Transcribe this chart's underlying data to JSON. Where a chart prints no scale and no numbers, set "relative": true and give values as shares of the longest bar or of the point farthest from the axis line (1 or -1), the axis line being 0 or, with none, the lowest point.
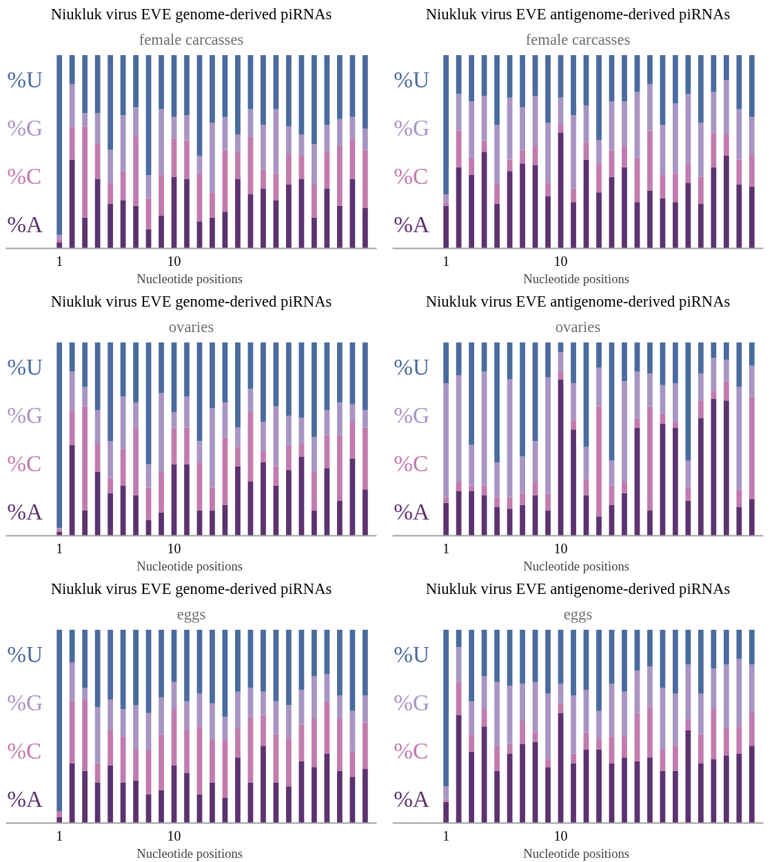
{
  "chart_data": [
    {
      "type": "bar",
      "stacked": true,
      "relative": true,
      "title": "Niukluk virus EVE genome-derived piRNAs",
      "subtitle": "female carcasses",
      "xlabel": "Nucleotide  positions",
      "categories": [
        "1",
        null,
        null,
        null,
        null,
        null,
        null,
        null,
        null,
        "10",
        null,
        null,
        null,
        null,
        null,
        null,
        null,
        null,
        null,
        null,
        null,
        null,
        null,
        null,
        null
      ],
      "series": [
        {
          "name": "%A",
          "color": "#5c3270",
          "values": [
            0.03,
            0.46,
            0.16,
            0.36,
            0.23,
            0.25,
            0.22,
            0.1,
            0.17,
            0.37,
            0.36,
            0.14,
            0.16,
            0.19,
            0.36,
            0.28,
            0.31,
            0.25,
            0.33,
            0.36,
            0.16,
            0.31,
            0.22,
            0.36,
            0.21
          ]
        },
        {
          "name": "%C",
          "color": "#c27bae",
          "values": [
            0.02,
            0.17,
            0.47,
            0.18,
            0.11,
            0.15,
            0.36,
            0.16,
            0.21,
            0.2,
            0.2,
            0.25,
            0.13,
            0.32,
            0.14,
            0.3,
            0.1,
            0.14,
            0.16,
            0.12,
            0.17,
            0.19,
            0.31,
            0.21,
            0.3
          ]
        },
        {
          "name": "%G",
          "color": "#a895c4",
          "values": [
            0.02,
            0.22,
            0.07,
            0.16,
            0.17,
            0.29,
            0.15,
            0.12,
            0.34,
            0.11,
            0.13,
            0.09,
            0.36,
            0.17,
            0.09,
            0.14,
            0.23,
            0.33,
            0.14,
            0.11,
            0.21,
            0.14,
            0.14,
            0.11,
            0.11
          ]
        },
        {
          "name": "%U",
          "color": "#4a6b9e",
          "values": [
            0.93,
            0.15,
            0.3,
            0.3,
            0.49,
            0.31,
            0.27,
            0.62,
            0.28,
            0.32,
            0.31,
            0.52,
            0.35,
            0.32,
            0.41,
            0.28,
            0.36,
            0.28,
            0.37,
            0.41,
            0.46,
            0.36,
            0.33,
            0.32,
            0.38
          ]
        }
      ]
    },
    {
      "type": "bar",
      "stacked": true,
      "relative": true,
      "title": "Niukluk virus EVE antigenome-derived piRNAs",
      "subtitle": "female carcasses",
      "xlabel": "Nucleotide  positions",
      "categories": [
        "1",
        null,
        null,
        null,
        null,
        null,
        null,
        null,
        null,
        "10",
        null,
        null,
        null,
        null,
        null,
        null,
        null,
        null,
        null,
        null,
        null,
        null,
        null,
        null,
        null
      ],
      "series": [
        {
          "name": "%A",
          "color": "#5c3270",
          "values": [
            0.22,
            0.42,
            0.38,
            0.5,
            0.23,
            0.4,
            0.44,
            0.43,
            0.27,
            0.6,
            0.24,
            0.46,
            0.29,
            0.37,
            0.42,
            0.24,
            0.3,
            0.26,
            0.24,
            0.34,
            0.23,
            0.42,
            0.48,
            0.33,
            0.32
          ]
        },
        {
          "name": "%C",
          "color": "#c27bae",
          "values": [
            0.02,
            0.19,
            0.09,
            0.06,
            0.1,
            0.06,
            0.07,
            0.1,
            0.07,
            0.04,
            0.07,
            0.09,
            0.15,
            0.14,
            0.11,
            0.23,
            0.31,
            0.12,
            0.15,
            0.1,
            0.14,
            0.18,
            0.11,
            0.13,
            0.17
          ]
        },
        {
          "name": "%G",
          "color": "#a895c4",
          "values": [
            0.04,
            0.19,
            0.29,
            0.23,
            0.31,
            0.32,
            0.22,
            0.26,
            0.31,
            0.14,
            0.38,
            0.19,
            0.12,
            0.25,
            0.23,
            0.34,
            0.24,
            0.26,
            0.36,
            0.36,
            0.28,
            0.21,
            0.28,
            0.26,
            0.19
          ]
        },
        {
          "name": "%U",
          "color": "#4a6b9e",
          "values": [
            0.72,
            0.2,
            0.24,
            0.21,
            0.36,
            0.22,
            0.27,
            0.21,
            0.35,
            0.22,
            0.31,
            0.26,
            0.44,
            0.24,
            0.24,
            0.19,
            0.15,
            0.36,
            0.25,
            0.2,
            0.35,
            0.19,
            0.13,
            0.28,
            0.32
          ]
        }
      ]
    },
    {
      "type": "bar",
      "stacked": true,
      "relative": true,
      "title": "Niukluk virus EVE genome-derived piRNAs",
      "subtitle": "ovaries",
      "xlabel": "Nucleotide  positions",
      "categories": [
        "1",
        null,
        null,
        null,
        null,
        null,
        null,
        null,
        null,
        "10",
        null,
        null,
        null,
        null,
        null,
        null,
        null,
        null,
        null,
        null,
        null,
        null,
        null,
        null,
        null
      ],
      "series": [
        {
          "name": "%A",
          "color": "#5c3270",
          "values": [
            0.02,
            0.47,
            0.13,
            0.33,
            0.22,
            0.26,
            0.21,
            0.08,
            0.12,
            0.37,
            0.37,
            0.13,
            0.13,
            0.16,
            0.36,
            0.28,
            0.38,
            0.26,
            0.34,
            0.41,
            0.13,
            0.35,
            0.18,
            0.4,
            0.24
          ]
        },
        {
          "name": "%C",
          "color": "#c27bae",
          "values": [
            0.01,
            0.18,
            0.54,
            0.15,
            0.08,
            0.19,
            0.35,
            0.17,
            0.21,
            0.19,
            0.19,
            0.25,
            0.12,
            0.35,
            0.1,
            0.36,
            0.06,
            0.1,
            0.13,
            0.07,
            0.2,
            0.17,
            0.34,
            0.19,
            0.32
          ]
        },
        {
          "name": "%G",
          "color": "#a895c4",
          "values": [
            0.01,
            0.2,
            0.1,
            0.17,
            0.19,
            0.27,
            0.13,
            0.12,
            0.41,
            0.08,
            0.16,
            0.11,
            0.41,
            0.18,
            0.1,
            0.12,
            0.15,
            0.31,
            0.15,
            0.13,
            0.18,
            0.13,
            0.17,
            0.09,
            0.09
          ]
        },
        {
          "name": "%U",
          "color": "#4a6b9e",
          "values": [
            0.96,
            0.15,
            0.23,
            0.35,
            0.51,
            0.28,
            0.31,
            0.63,
            0.26,
            0.36,
            0.28,
            0.51,
            0.34,
            0.31,
            0.44,
            0.24,
            0.41,
            0.33,
            0.38,
            0.39,
            0.49,
            0.35,
            0.31,
            0.32,
            0.35
          ]
        }
      ]
    },
    {
      "type": "bar",
      "stacked": true,
      "relative": true,
      "title": "Niukluk virus EVE antigenome-derived piRNAs",
      "subtitle": "ovaries",
      "xlabel": "Nucleotide  positions",
      "categories": [
        "1",
        null,
        null,
        null,
        null,
        null,
        null,
        null,
        null,
        "10",
        null,
        null,
        null,
        null,
        null,
        null,
        null,
        null,
        null,
        null,
        null,
        null,
        null,
        null,
        null
      ],
      "series": [
        {
          "name": "%A",
          "color": "#5c3270",
          "values": [
            0.17,
            0.23,
            0.23,
            0.21,
            0.15,
            0.14,
            0.16,
            0.21,
            0.13,
            0.81,
            0.55,
            0.21,
            0.1,
            0.16,
            0.22,
            0.56,
            0.13,
            0.58,
            0.56,
            0.18,
            0.61,
            0.71,
            0.7,
            0.15,
            0.19
          ]
        },
        {
          "name": "%C",
          "color": "#c27bae",
          "values": [
            0.03,
            0.05,
            0.03,
            0.05,
            0.05,
            0.06,
            0.06,
            0.07,
            0.09,
            0.04,
            0.05,
            0.08,
            0.57,
            0.1,
            0.06,
            0.05,
            0.54,
            0.05,
            0.03,
            0.07,
            0.09,
            0.04,
            0.1,
            0.09,
            0.53
          ]
        },
        {
          "name": "%G",
          "color": "#a895c4",
          "values": [
            0.59,
            0.55,
            0.21,
            0.59,
            0.18,
            0.61,
            0.19,
            0.21,
            0.6,
            0.1,
            0.19,
            0.17,
            0.2,
            0.13,
            0.52,
            0.24,
            0.17,
            0.15,
            0.2,
            0.14,
            0.14,
            0.17,
            0.11,
            0.53,
            0.16
          ]
        },
        {
          "name": "%U",
          "color": "#4a6b9e",
          "values": [
            0.21,
            0.17,
            0.53,
            0.15,
            0.62,
            0.19,
            0.59,
            0.51,
            0.18,
            0.05,
            0.21,
            0.54,
            0.13,
            0.61,
            0.2,
            0.15,
            0.16,
            0.22,
            0.21,
            0.61,
            0.16,
            0.08,
            0.09,
            0.23,
            0.12
          ]
        }
      ]
    },
    {
      "type": "bar",
      "stacked": true,
      "relative": true,
      "title": "Niukluk virus EVE genome-derived piRNAs",
      "subtitle": "eggs",
      "xlabel": "Nucleotide  positions",
      "categories": [
        "1",
        null,
        null,
        null,
        null,
        null,
        null,
        null,
        null,
        "10",
        null,
        null,
        null,
        null,
        null,
        null,
        null,
        null,
        null,
        null,
        null,
        null,
        null,
        null,
        null
      ],
      "series": [
        {
          "name": "%A",
          "color": "#5c3270",
          "values": [
            0.03,
            0.31,
            0.27,
            0.21,
            0.3,
            0.21,
            0.22,
            0.15,
            0.17,
            0.3,
            0.26,
            0.15,
            0.21,
            0.13,
            0.34,
            0.21,
            0.4,
            0.21,
            0.19,
            0.32,
            0.29,
            0.36,
            0.27,
            0.24,
            0.28
          ]
        },
        {
          "name": "%C",
          "color": "#c27bae",
          "values": [
            0.03,
            0.32,
            0.37,
            0.1,
            0.18,
            0.24,
            0.16,
            0.23,
            0.29,
            0.29,
            0.22,
            0.35,
            0.22,
            0.3,
            0.15,
            0.34,
            0.16,
            0.25,
            0.25,
            0.19,
            0.25,
            0.27,
            0.27,
            0.13,
            0.24
          ]
        },
        {
          "name": "%G",
          "color": "#a895c4",
          "values": [
            0.0,
            0.2,
            0.06,
            0.29,
            0.16,
            0.14,
            0.23,
            0.19,
            0.19,
            0.14,
            0.15,
            0.17,
            0.19,
            0.12,
            0.19,
            0.15,
            0.12,
            0.17,
            0.17,
            0.18,
            0.22,
            0.14,
            0.12,
            0.21,
            0.14
          ]
        },
        {
          "name": "%U",
          "color": "#4a6b9e",
          "values": [
            0.94,
            0.17,
            0.3,
            0.4,
            0.36,
            0.41,
            0.39,
            0.43,
            0.35,
            0.27,
            0.37,
            0.33,
            0.38,
            0.45,
            0.32,
            0.3,
            0.32,
            0.37,
            0.39,
            0.31,
            0.24,
            0.23,
            0.34,
            0.42,
            0.34
          ]
        }
      ]
    },
    {
      "type": "bar",
      "stacked": true,
      "relative": true,
      "title": "Niukluk virus EVE antigenome-derived piRNAs",
      "subtitle": "eggs",
      "xlabel": "Nucleotide  positions",
      "categories": [
        "1",
        null,
        null,
        null,
        null,
        null,
        null,
        null,
        null,
        "10",
        null,
        null,
        null,
        null,
        null,
        null,
        null,
        null,
        null,
        null,
        null,
        null,
        null,
        null,
        null
      ],
      "series": [
        {
          "name": "%A",
          "color": "#5c3270",
          "values": [
            0.11,
            0.56,
            0.37,
            0.5,
            0.27,
            0.36,
            0.41,
            0.42,
            0.29,
            0.57,
            0.31,
            0.38,
            0.38,
            0.31,
            0.34,
            0.32,
            0.34,
            0.27,
            0.27,
            0.48,
            0.31,
            0.33,
            0.35,
            0.36,
            0.4
          ]
        },
        {
          "name": "%C",
          "color": "#c27bae",
          "values": [
            0.01,
            0.17,
            0.09,
            0.09,
            0.13,
            0.05,
            0.12,
            0.05,
            0.04,
            0.05,
            0.05,
            0.09,
            0.06,
            0.14,
            0.11,
            0.25,
            0.26,
            0.11,
            0.13,
            0.06,
            0.15,
            0.26,
            0.14,
            0.14,
            0.18
          ]
        },
        {
          "name": "%G",
          "color": "#a895c4",
          "values": [
            0.07,
            0.18,
            0.17,
            0.17,
            0.33,
            0.3,
            0.19,
            0.26,
            0.34,
            0.1,
            0.3,
            0.22,
            0.14,
            0.27,
            0.23,
            0.22,
            0.21,
            0.32,
            0.27,
            0.28,
            0.21,
            0.21,
            0.33,
            0.35,
            0.24
          ]
        },
        {
          "name": "%U",
          "color": "#4a6b9e",
          "values": [
            0.81,
            0.09,
            0.37,
            0.24,
            0.27,
            0.29,
            0.28,
            0.27,
            0.33,
            0.28,
            0.34,
            0.31,
            0.42,
            0.28,
            0.32,
            0.21,
            0.19,
            0.3,
            0.33,
            0.18,
            0.33,
            0.2,
            0.18,
            0.15,
            0.18
          ]
        }
      ]
    }
  ]
}
